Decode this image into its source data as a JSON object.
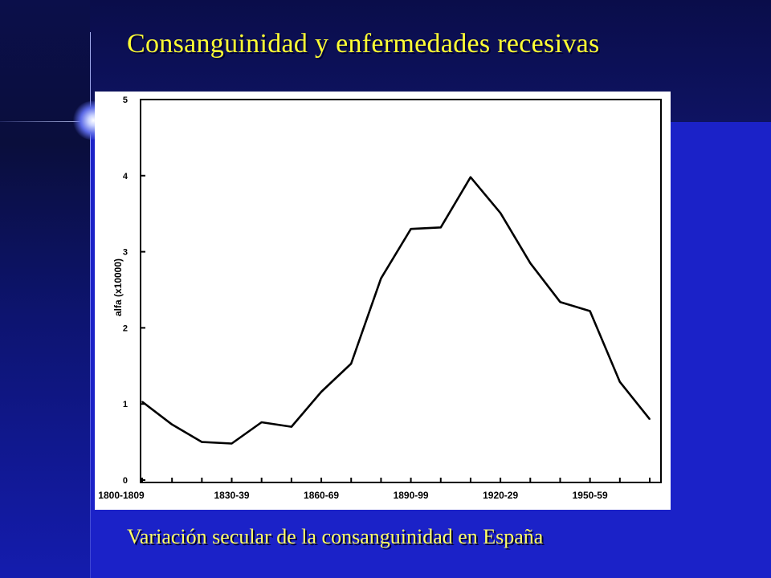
{
  "slide": {
    "title": "Consanguinidad y enfermedades recesivas",
    "caption": "Variación secular de la consanguinidad en España"
  },
  "colors": {
    "title": "#ffff33",
    "caption": "#ffff66",
    "background": "#1b22c8",
    "plot_line": "#000000"
  },
  "chart_data": {
    "type": "line",
    "title": "",
    "xlabel": "",
    "ylabel": "alfa (x10000)",
    "ylim": [
      0,
      5
    ],
    "yticks": [
      "0",
      "1",
      "2",
      "3",
      "4",
      "5"
    ],
    "xtick_labels": [
      "1800-1809",
      "1830-39",
      "1860-69",
      "1890-99",
      "1920-29",
      "1950-59"
    ],
    "grid": false,
    "series": [
      {
        "x": [
          1800,
          1810,
          1820,
          1830,
          1840,
          1850,
          1860,
          1870,
          1880,
          1890,
          1900,
          1910,
          1920,
          1930,
          1940,
          1950,
          1960,
          1970
        ],
        "values": [
          1.03,
          0.73,
          0.5,
          0.48,
          0.76,
          0.7,
          1.16,
          1.53,
          2.65,
          3.3,
          3.32,
          3.98,
          3.51,
          2.85,
          2.34,
          2.22,
          1.29,
          0.8
        ]
      }
    ]
  }
}
